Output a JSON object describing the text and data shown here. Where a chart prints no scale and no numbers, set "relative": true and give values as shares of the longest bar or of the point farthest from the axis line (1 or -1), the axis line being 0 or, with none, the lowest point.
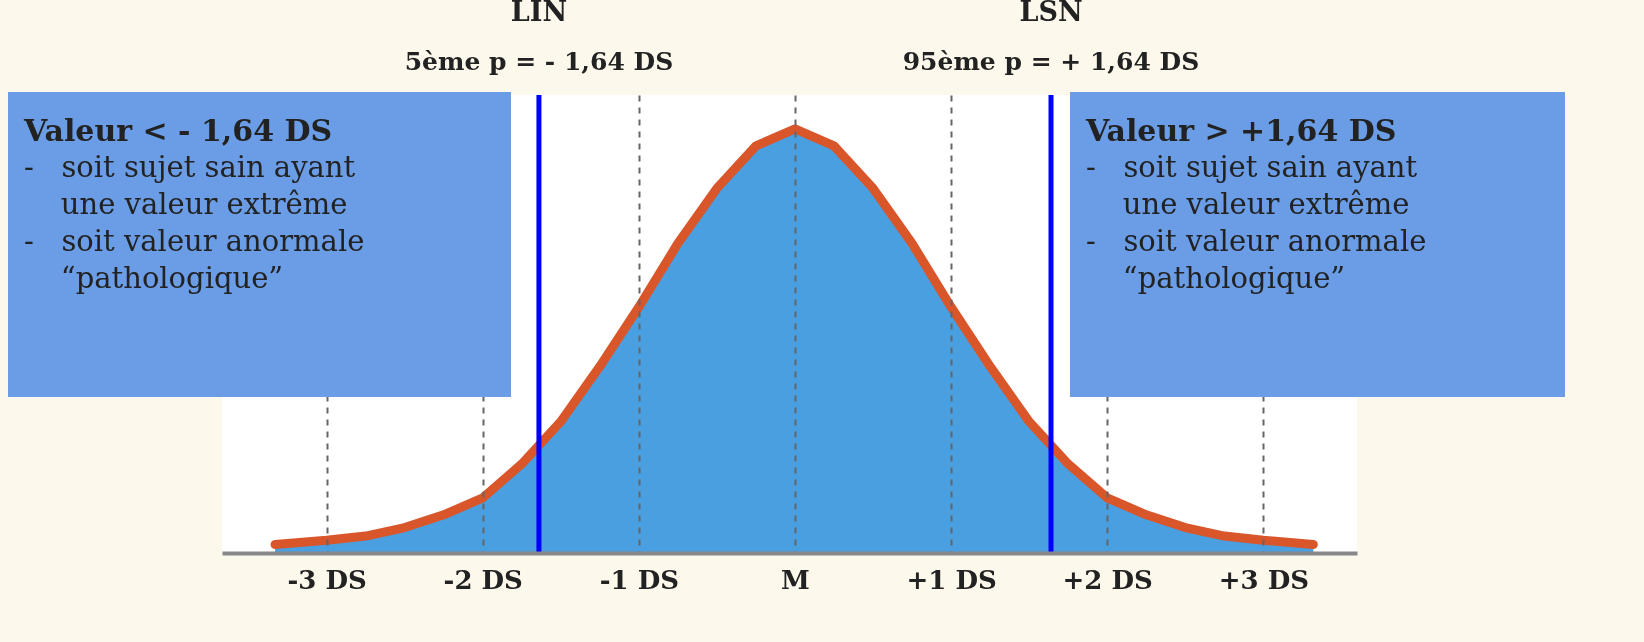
{
  "chart_data": {
    "type": "area",
    "relative": true,
    "x": [
      -3.33,
      -3,
      -2.75,
      -2.5,
      -2.25,
      -2,
      -1.75,
      -1.5,
      -1.25,
      -1,
      -0.75,
      -0.5,
      -0.25,
      0,
      0.25,
      0.5,
      0.75,
      1,
      1.25,
      1.5,
      1.75,
      2,
      2.25,
      2.5,
      2.75,
      3,
      3.32
    ],
    "series": [
      {
        "color": "#4a9fe0",
        "values": [
          0.02,
          0.03,
          0.04,
          0.06,
          0.09,
          0.13,
          0.21,
          0.31,
          0.44,
          0.58,
          0.73,
          0.86,
          0.96,
          1,
          0.96,
          0.86,
          0.73,
          0.58,
          0.44,
          0.31,
          0.21,
          0.13,
          0.09,
          0.06,
          0.04,
          0.03,
          0.02
        ]
      },
      {
        "type": "line",
        "color": "#d9552a",
        "values": [
          0.02,
          0.03,
          0.04,
          0.06,
          0.09,
          0.13,
          0.21,
          0.31,
          0.44,
          0.58,
          0.73,
          0.86,
          0.96,
          1,
          0.96,
          0.86,
          0.73,
          0.58,
          0.44,
          0.31,
          0.21,
          0.13,
          0.09,
          0.06,
          0.04,
          0.03,
          0.02
        ]
      }
    ],
    "xlim": [
      -3.67,
      3.6
    ],
    "xticks": [
      {
        "value": -3,
        "label": "-3 DS"
      },
      {
        "value": -2,
        "label": "-2 DS"
      },
      {
        "value": -1,
        "label": "-1 DS"
      },
      {
        "value": 0,
        "label": "M"
      },
      {
        "value": 1,
        "label": "+1 DS"
      },
      {
        "value": 2,
        "label": "+2 DS"
      },
      {
        "value": 3,
        "label": "+3 DS"
      }
    ],
    "grid": "x",
    "tick_labels": "x",
    "ref_lines": [
      {
        "axis": "x",
        "value": -1.64,
        "label": "LIN\n5ème p = - 1,64 DS",
        "color": "#0000ff"
      },
      {
        "axis": "x",
        "value": 1.64,
        "label": "LSN\n95ème p = + 1,64 DS",
        "color": "#0000ff"
      }
    ],
    "annotations": [
      "Valeur < - 1,64 DS\n-   soit sujet sain ayant\n    une valeur extrême\n-   soit valeur anormale\n    “pathologique”",
      "Valeur > +1,64 DS\n-   soit sujet sain ayant\n    une valeur extrême\n-   soit valeur anormale\n    “pathologique”"
    ]
  }
}
